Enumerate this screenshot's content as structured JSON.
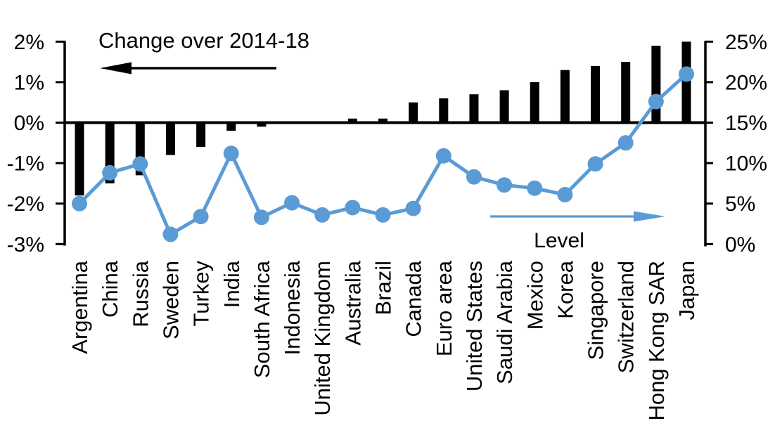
{
  "chart": {
    "title": "Change over 2014-18",
    "level_label": "Level",
    "colors": {
      "bar": "#000000",
      "line": "#5B9BD5",
      "axis": "#000000",
      "background": "#FFFFFF"
    },
    "left_axis": {
      "tick_labels": [
        "2%",
        "1%",
        "0%",
        "-1%",
        "-2%",
        "-3%"
      ],
      "tick_values": [
        2,
        1,
        0,
        -1,
        -2,
        -3
      ],
      "min": -3,
      "max": 2,
      "unit": "%"
    },
    "right_axis": {
      "tick_labels": [
        "25%",
        "20%",
        "15%",
        "10%",
        "5%",
        "0%"
      ],
      "tick_values": [
        25,
        20,
        15,
        10,
        5,
        0
      ],
      "min": 0,
      "max": 25,
      "unit": "%"
    }
  },
  "chart_data": {
    "type": "combo-bar-line",
    "categories": [
      "Argentina",
      "China",
      "Russia",
      "Sweden",
      "Turkey",
      "India",
      "South Africa",
      "Indonesia",
      "United Kingdom",
      "Australia",
      "Brazil",
      "Canada",
      "Euro area",
      "United States",
      "Saudi Arabia",
      "Mexico",
      "Korea",
      "Singapore",
      "Switzerland",
      "Hong Kong SAR",
      "Japan"
    ],
    "series": [
      {
        "name": "Change over 2014-18",
        "type": "bar",
        "axis": "left",
        "values": [
          -1.8,
          -1.5,
          -1.3,
          -0.8,
          -0.6,
          -0.2,
          -0.1,
          0.0,
          0.0,
          0.1,
          0.1,
          0.5,
          0.6,
          0.7,
          0.8,
          1.0,
          1.3,
          1.4,
          1.5,
          1.9,
          2.0
        ]
      },
      {
        "name": "Level",
        "type": "line",
        "axis": "right",
        "values": [
          5.0,
          8.8,
          9.9,
          1.2,
          3.4,
          11.2,
          3.3,
          5.1,
          3.6,
          4.5,
          3.6,
          4.4,
          10.9,
          8.3,
          7.3,
          6.9,
          6.1,
          9.9,
          12.5,
          17.6,
          21.0
        ]
      }
    ],
    "left_ylim": [
      -3,
      2
    ],
    "right_ylim": [
      0,
      25
    ],
    "grid": false,
    "legend_position": "in-plot arrow annotations: left arrow to left axis for change, right arrow to right axis for level"
  }
}
